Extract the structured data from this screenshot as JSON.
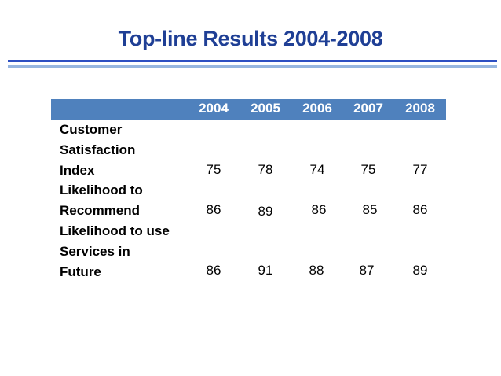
{
  "slide": {
    "title": "Top-line Results 2004-2008"
  },
  "table": {
    "years": [
      "2004",
      "2005",
      "2006",
      "2007",
      "2008"
    ],
    "rows": [
      {
        "label_lines": [
          "Customer",
          "Satisfaction",
          "Index"
        ],
        "values": [
          "75",
          "78",
          "74",
          "75",
          "77"
        ]
      },
      {
        "label_lines": [
          "Likelihood to",
          "Recommend"
        ],
        "values": [
          "86",
          "89",
          "86",
          "85",
          "86"
        ]
      },
      {
        "label_lines": [
          "Likelihood to use",
          "Services in",
          "Future"
        ],
        "values": [
          "86",
          "91",
          "88",
          "87",
          "89"
        ]
      }
    ]
  },
  "colors": {
    "title": "#1f3f95",
    "header_bar": "#4f81bd",
    "rule_dark": "#2d4fc2",
    "rule_light": "#97b6e0"
  }
}
